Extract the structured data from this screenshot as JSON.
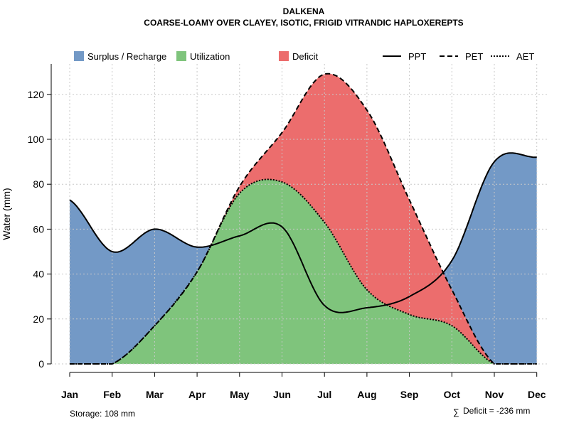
{
  "chart_data": {
    "type": "area",
    "title": "DALKENA",
    "subtitle": "COARSE-LOAMY OVER CLAYEY, ISOTIC, FRIGID VITRANDIC HAPLOXEREPTS",
    "ylabel": "Water (mm)",
    "xlabel": "",
    "ylim": [
      0,
      130
    ],
    "yticks": [
      0,
      20,
      40,
      60,
      80,
      100,
      120
    ],
    "categories": [
      "Jan",
      "Feb",
      "Mar",
      "Apr",
      "May",
      "Jun",
      "Jul",
      "Aug",
      "Sep",
      "Oct",
      "Nov",
      "Dec"
    ],
    "series": [
      {
        "name": "PPT",
        "line": "solid",
        "values": [
          73,
          50,
          60,
          52,
          57,
          61,
          26,
          25,
          30,
          46,
          90,
          92
        ]
      },
      {
        "name": "PET",
        "line": "dashed",
        "values": [
          0,
          0,
          17,
          41,
          79,
          103,
          129,
          113,
          73,
          33,
          0,
          0
        ]
      },
      {
        "name": "AET",
        "line": "dotted",
        "values": [
          0,
          0,
          17,
          41,
          76,
          81,
          63,
          33,
          22,
          17,
          0,
          0
        ]
      }
    ],
    "fills": [
      {
        "name": "Surplus / Recharge",
        "color": "#7399c6"
      },
      {
        "name": "Utilization",
        "color": "#7fc47c"
      },
      {
        "name": "Deficit",
        "color": "#ec6d6d"
      }
    ],
    "grid": true,
    "legend_position": "top"
  },
  "footer": {
    "storage": "Storage: 108 mm",
    "deficit_symbol": "∑",
    "deficit": "Deficit = -236 mm"
  }
}
